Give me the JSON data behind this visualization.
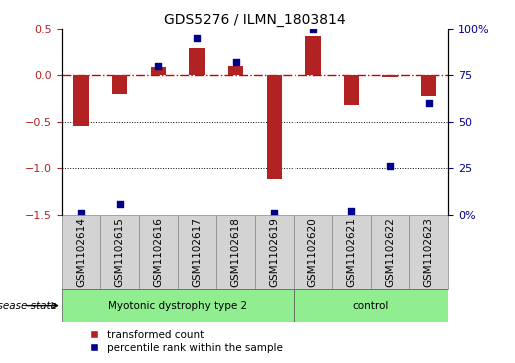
{
  "title": "GDS5276 / ILMN_1803814",
  "samples": [
    "GSM1102614",
    "GSM1102615",
    "GSM1102616",
    "GSM1102617",
    "GSM1102618",
    "GSM1102619",
    "GSM1102620",
    "GSM1102621",
    "GSM1102622",
    "GSM1102623"
  ],
  "transformed_count": [
    -0.55,
    -0.2,
    0.09,
    0.3,
    0.1,
    -1.12,
    0.43,
    -0.32,
    -0.02,
    -0.22
  ],
  "percentile_rank": [
    1,
    6,
    80,
    95,
    82,
    1,
    100,
    2,
    26,
    60
  ],
  "disease_groups": [
    {
      "label": "Myotonic dystrophy type 2",
      "start": 0,
      "end": 6
    },
    {
      "label": "control",
      "start": 6,
      "end": 10
    }
  ],
  "ylim_left": [
    -1.5,
    0.5
  ],
  "ylim_right": [
    0,
    100
  ],
  "bar_color": "#b22222",
  "dot_color": "#00008b",
  "dashed_line_color": "#cc0000",
  "bg_color": "#ffffff",
  "group_colors": [
    "#90ee90",
    "#90ee90"
  ],
  "sample_box_color": "#d3d3d3",
  "legend_labels": [
    "transformed count",
    "percentile rank within the sample"
  ],
  "disease_state_label": "disease state",
  "title_fontsize": 10,
  "tick_fontsize": 8,
  "label_fontsize": 7.5,
  "legend_fontsize": 7.5
}
